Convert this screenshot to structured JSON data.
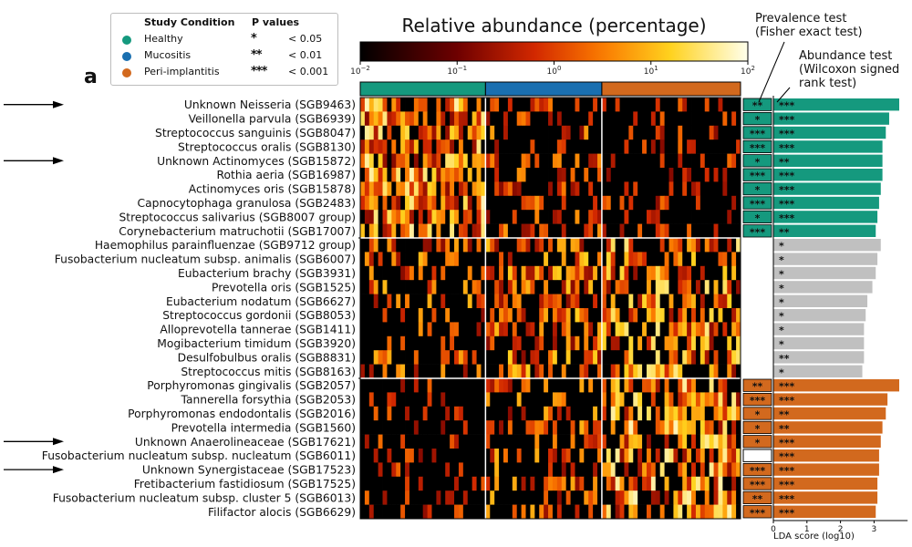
{
  "panel_label": "a",
  "legend": {
    "condition_header": "Study Condition",
    "pvalue_header": "P values",
    "conditions": [
      {
        "label": "Healthy",
        "color": "#15997e"
      },
      {
        "label": "Mucositis",
        "color": "#1a6fb0"
      },
      {
        "label": "Peri-implantitis",
        "color": "#d2691e"
      }
    ],
    "pvalues": [
      {
        "stars": "*",
        "label": "< 0.05"
      },
      {
        "stars": "**",
        "label": "< 0.01"
      },
      {
        "stars": "***",
        "label": "< 0.001"
      }
    ]
  },
  "colorbar": {
    "title": "Relative abundance (percentage)",
    "ticks": [
      {
        "base": "10",
        "exp": "−2"
      },
      {
        "base": "10",
        "exp": "−1"
      },
      {
        "base": "10",
        "exp": "0"
      },
      {
        "base": "10",
        "exp": "1"
      },
      {
        "base": "10",
        "exp": "2"
      }
    ],
    "scale": "log",
    "range": [
      0.01,
      100
    ]
  },
  "annotations": {
    "prevalence": [
      "Prevalence test",
      "(Fisher exact test)"
    ],
    "abundance": [
      "Abundance test",
      "(Wilcoxon signed",
      "rank test)"
    ]
  },
  "colors": {
    "healthy": "#15997e",
    "mucositis": "#1a6fb0",
    "peri": "#d2691e",
    "neutral": "#c0c0c0"
  },
  "chart_data": {
    "type": "heatmap",
    "columns_groups": [
      {
        "name": "Healthy",
        "count": 28
      },
      {
        "name": "Mucositis",
        "count": 26
      },
      {
        "name": "Peri-implantitis",
        "count": 31
      }
    ],
    "bar_axis": {
      "xlabel": "LDA score (log10)",
      "ticks": [
        0,
        1,
        2,
        3
      ],
      "xlim": [
        0,
        4
      ]
    },
    "rows": [
      {
        "label": "Unknown Neisseria (SGB9463)",
        "group": "healthy",
        "prev": "**",
        "abund": "***",
        "lda": 3.75,
        "arrow": true
      },
      {
        "label": "Veillonella parvula (SGB6939)",
        "group": "healthy",
        "prev": "*",
        "abund": "***",
        "lda": 3.45
      },
      {
        "label": "Streptococcus sanguinis (SGB8047)",
        "group": "healthy",
        "prev": "***",
        "abund": "***",
        "lda": 3.35
      },
      {
        "label": "Streptococcus oralis (SGB8130)",
        "group": "healthy",
        "prev": "***",
        "abund": "***",
        "lda": 3.25
      },
      {
        "label": "Unknown Actinomyces (SGB15872)",
        "group": "healthy",
        "prev": "*",
        "abund": "**",
        "lda": 3.25,
        "arrow": true
      },
      {
        "label": "Rothia aeria (SGB16987)",
        "group": "healthy",
        "prev": "***",
        "abund": "***",
        "lda": 3.25
      },
      {
        "label": "Actinomyces oris (SGB15878)",
        "group": "healthy",
        "prev": "*",
        "abund": "***",
        "lda": 3.2
      },
      {
        "label": "Capnocytophaga granulosa (SGB2483)",
        "group": "healthy",
        "prev": "***",
        "abund": "***",
        "lda": 3.15
      },
      {
        "label": "Streptococcus salivarius (SGB8007 group)",
        "group": "healthy",
        "prev": "*",
        "abund": "***",
        "lda": 3.1
      },
      {
        "label": "Corynebacterium matruchotii (SGB17007)",
        "group": "healthy",
        "prev": "***",
        "abund": "**",
        "lda": 3.05
      },
      {
        "label": "Haemophilus parainfluenzae (SGB9712 group)",
        "group": "neutral",
        "prev": "",
        "abund": "*",
        "lda": 3.2
      },
      {
        "label": "Fusobacterium nucleatum subsp. animalis (SGB6007)",
        "group": "neutral",
        "prev": "",
        "abund": "*",
        "lda": 3.1
      },
      {
        "label": "Eubacterium brachy (SGB3931)",
        "group": "neutral",
        "prev": "",
        "abund": "*",
        "lda": 3.05
      },
      {
        "label": "Prevotella oris (SGB1525)",
        "group": "neutral",
        "prev": "",
        "abund": "*",
        "lda": 2.95
      },
      {
        "label": "Eubacterium nodatum (SGB6627)",
        "group": "neutral",
        "prev": "",
        "abund": "*",
        "lda": 2.8
      },
      {
        "label": "Streptococcus gordonii (SGB8053)",
        "group": "neutral",
        "prev": "",
        "abund": "*",
        "lda": 2.75
      },
      {
        "label": "Alloprevotella tannerae (SGB1411)",
        "group": "neutral",
        "prev": "",
        "abund": "*",
        "lda": 2.7
      },
      {
        "label": "Mogibacterium timidum (SGB3920)",
        "group": "neutral",
        "prev": "",
        "abund": "*",
        "lda": 2.7
      },
      {
        "label": "Desulfobulbus oralis (SGB8831)",
        "group": "neutral",
        "prev": "",
        "abund": "**",
        "lda": 2.7
      },
      {
        "label": "Streptococcus mitis (SGB8163)",
        "group": "neutral",
        "prev": "",
        "abund": "*",
        "lda": 2.65
      },
      {
        "label": "Porphyromonas gingivalis (SGB2057)",
        "group": "peri",
        "prev": "**",
        "abund": "***",
        "lda": 3.75
      },
      {
        "label": "Tannerella forsythia (SGB2053)",
        "group": "peri",
        "prev": "***",
        "abund": "***",
        "lda": 3.4
      },
      {
        "label": "Porphyromonas endodontalis (SGB2016)",
        "group": "peri",
        "prev": "*",
        "abund": "**",
        "lda": 3.35
      },
      {
        "label": "Prevotella intermedia (SGB1560)",
        "group": "peri",
        "prev": "*",
        "abund": "**",
        "lda": 3.25
      },
      {
        "label": "Unknown Anaerolineaceae (SGB17621)",
        "group": "peri",
        "prev": "*",
        "abund": "***",
        "lda": 3.2,
        "arrow": true
      },
      {
        "label": "Fusobacterium nucleatum subsp. nucleatum (SGB6011)",
        "group": "peri",
        "prev": "",
        "prev_box": true,
        "abund": "***",
        "lda": 3.15
      },
      {
        "label": "Unknown Synergistaceae (SGB17523)",
        "group": "peri",
        "prev": "***",
        "abund": "***",
        "lda": 3.15,
        "arrow": true
      },
      {
        "label": "Fretibacterium fastidiosum (SGB17525)",
        "group": "peri",
        "prev": "***",
        "abund": "***",
        "lda": 3.1
      },
      {
        "label": "Fusobacterium nucleatum subsp. cluster 5 (SGB6013)",
        "group": "peri",
        "prev": "**",
        "abund": "***",
        "lda": 3.1
      },
      {
        "label": "Filifactor alocis (SGB6629)",
        "group": "peri",
        "prev": "***",
        "abund": "***",
        "lda": 3.05
      }
    ]
  }
}
